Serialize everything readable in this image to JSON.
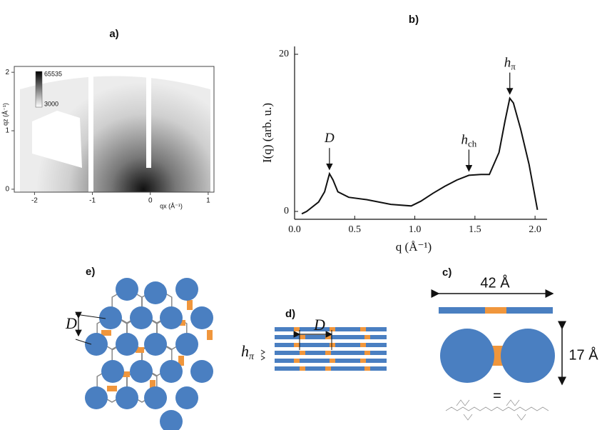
{
  "chart_data": [
    {
      "type": "image",
      "title": "a)",
      "x_label": "qx (Å⁻¹)",
      "y_label": "qz (Å⁻¹)",
      "xlim": [
        -2.35,
        1.1
      ],
      "ylim": [
        -0.05,
        2.1
      ],
      "xticks": [
        -2,
        -1,
        0,
        1
      ],
      "yticks": [
        0,
        1,
        2
      ],
      "colorbar_labels": [
        "65535",
        "3000"
      ]
    },
    {
      "type": "line",
      "title": "b)",
      "x_label": "q (Å⁻¹)",
      "y_label": "I(q) (arb. u.)",
      "x": [
        0.06,
        0.1,
        0.2,
        0.25,
        0.29,
        0.32,
        0.36,
        0.45,
        0.6,
        0.8,
        0.97,
        1.05,
        1.15,
        1.25,
        1.35,
        1.45,
        1.55,
        1.62,
        1.7,
        1.75,
        1.79,
        1.82,
        1.88,
        1.95,
        2.02
      ],
      "series": [
        {
          "color": "#111111",
          "values": [
            -0.3,
            0,
            1.2,
            2.5,
            4.8,
            4.0,
            2.5,
            1.8,
            1.5,
            0.9,
            0.7,
            1.3,
            2.3,
            3.2,
            4.0,
            4.6,
            4.7,
            4.7,
            7.5,
            11.5,
            14.4,
            13.8,
            10.5,
            6,
            0.2
          ]
        }
      ],
      "xlim": [
        0,
        2.1
      ],
      "ylim": [
        -1,
        21
      ],
      "xticks": [
        {
          "value": 0,
          "label": "0.0"
        },
        0.5,
        {
          "value": 1,
          "label": "1.0"
        },
        1.5,
        {
          "value": 2,
          "label": "2.0"
        }
      ],
      "yticks": [
        0,
        20
      ],
      "annotations": [
        {
          "text": "D",
          "x": 0.29,
          "y": 4.8
        },
        {
          "text": "h",
          "sub": "ch",
          "x": 1.45,
          "y": 4.6
        },
        {
          "text": "h",
          "sub": "π",
          "x": 1.79,
          "y": 14.4
        }
      ]
    }
  ],
  "diagrams": {
    "e": {
      "label": "e)",
      "spacing": "D"
    },
    "d": {
      "label": "d)",
      "spacing": "D",
      "stack": "h",
      "stack_sub": "π"
    },
    "c": {
      "label": "c)",
      "length": "42 Å",
      "width": "17 Å",
      "equals": "="
    }
  }
}
